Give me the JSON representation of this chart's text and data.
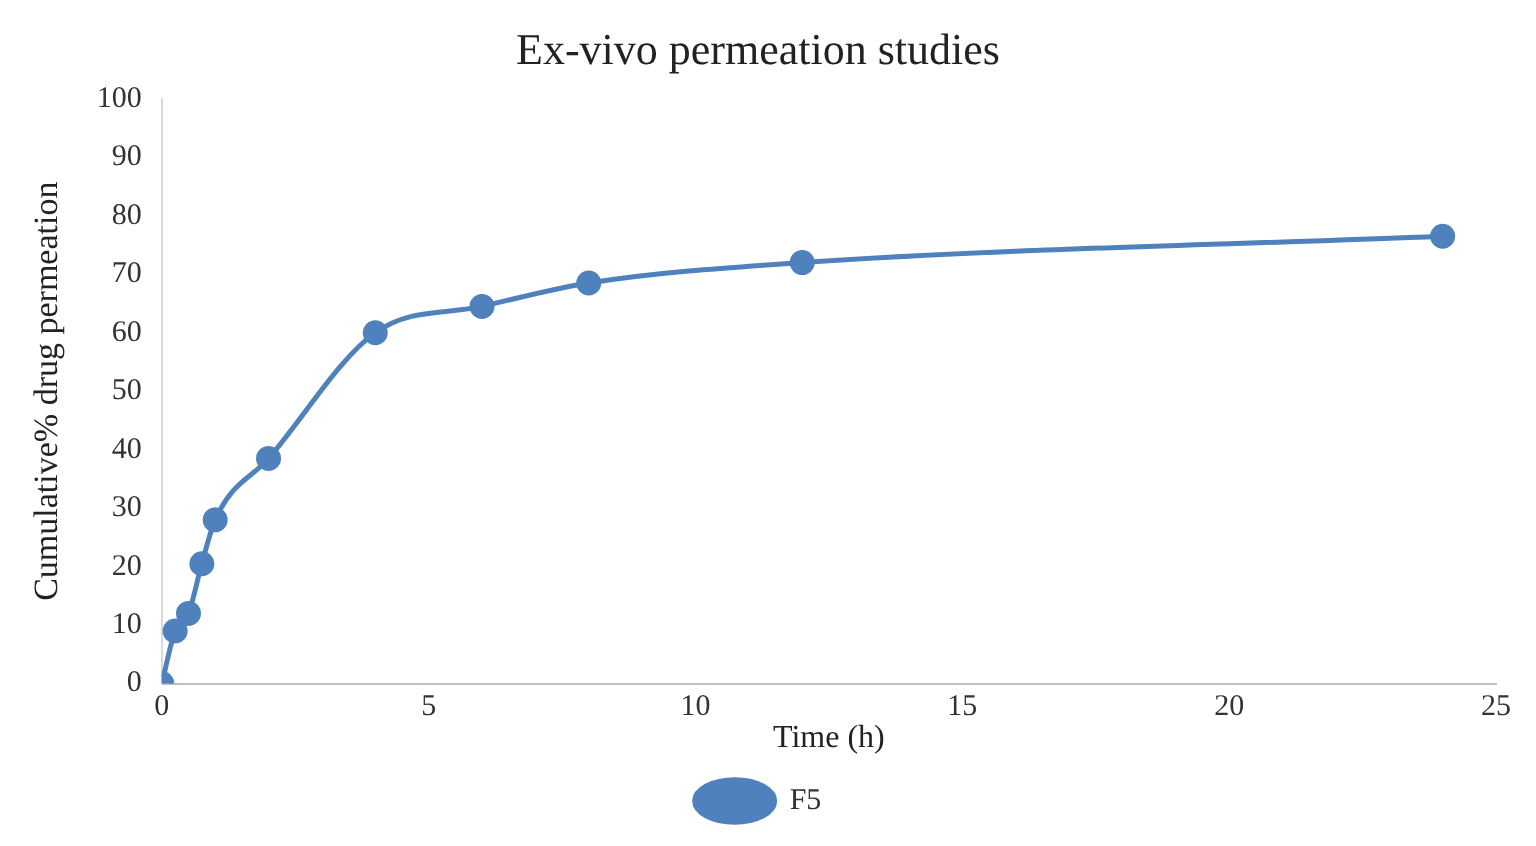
{
  "chart_data": {
    "type": "line",
    "title": "Ex-vivo permeation studies",
    "xlabel": "Time (h)",
    "ylabel": "Cumulative% drug permeation",
    "x": [
      0,
      0.25,
      0.5,
      0.75,
      1,
      2,
      4,
      6,
      8,
      12,
      24
    ],
    "series": [
      {
        "name": "F5",
        "color": "#4f81bd",
        "values": [
          0,
          9,
          12,
          20.5,
          28,
          38.5,
          60,
          64.5,
          68.5,
          72,
          76.5
        ]
      }
    ],
    "xlim": [
      0,
      25
    ],
    "xticks": [
      0,
      5,
      10,
      15,
      20,
      25
    ],
    "ylim": [
      0,
      100
    ],
    "yticks": [
      0,
      10,
      20,
      30,
      40,
      50,
      60,
      70,
      80,
      90,
      100
    ],
    "grid": false,
    "legend": "bottom",
    "marker": "circle",
    "line_style": "solid"
  }
}
